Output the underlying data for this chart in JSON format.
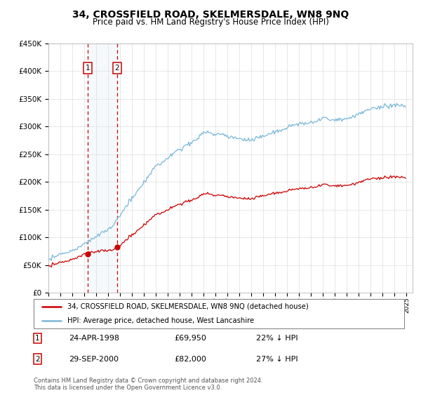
{
  "title": "34, CROSSFIELD ROAD, SKELMERSDALE, WN8 9NQ",
  "subtitle": "Price paid vs. HM Land Registry's House Price Index (HPI)",
  "legend_line1": "34, CROSSFIELD ROAD, SKELMERSDALE, WN8 9NQ (detached house)",
  "legend_line2": "HPI: Average price, detached house, West Lancashire",
  "transaction1_date": "24-APR-1998",
  "transaction1_price": 69950,
  "transaction1_pct": "22% ↓ HPI",
  "transaction1_year": 1998.29,
  "transaction2_date": "29-SEP-2000",
  "transaction2_price": 82000,
  "transaction2_pct": "27% ↓ HPI",
  "transaction2_year": 2000.75,
  "footer": "Contains HM Land Registry data © Crown copyright and database right 2024.\nThis data is licensed under the Open Government Licence v3.0.",
  "hpi_color": "#7ab8d9",
  "price_color": "#cc0000",
  "dot_color": "#cc0000",
  "vline_color": "#cc0000",
  "shade_color": "#daeaf5",
  "grid_color": "#dddddd",
  "ylim_min": 0,
  "ylim_max": 450000,
  "yticks": [
    0,
    50000,
    100000,
    150000,
    200000,
    250000,
    300000,
    350000,
    400000,
    450000
  ],
  "xmin": 1995,
  "xmax": 2025.5
}
